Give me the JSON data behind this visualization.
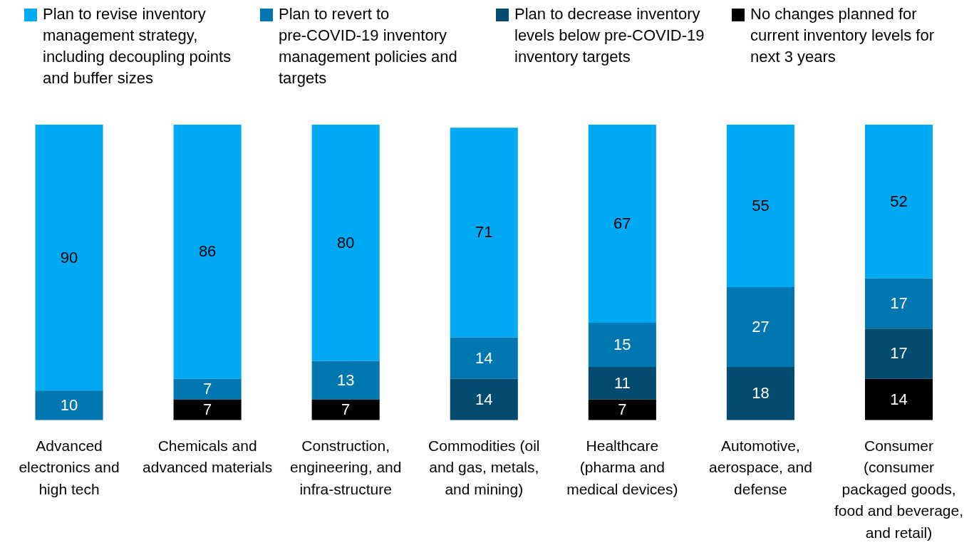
{
  "chart_data": {
    "type": "bar",
    "stacked": true,
    "legend": "top",
    "data_labels": true,
    "tick_labels": "x",
    "grid": false,
    "ylim": [
      0,
      100
    ],
    "categories": [
      "Advanced electronics and high tech",
      "Chemicals and advanced materials",
      "Construction, engineering, and infra-structure",
      "Commodities (oil and gas, metals, and mining)",
      "Healthcare (pharma and medical devices)",
      "Automotive, aerospace, and defense",
      "Consumer (consumer packaged goods, food and beverage, and retail)"
    ],
    "series": [
      {
        "name": "No changes planned for current inventory levels for next 3 years",
        "color": "#000000",
        "values": [
          null,
          7,
          7,
          null,
          7,
          null,
          14
        ]
      },
      {
        "name": "Plan to decrease inventory levels below pre-COVID-19 inventory targets",
        "color": "#034b6f",
        "values": [
          null,
          null,
          null,
          14,
          11,
          18,
          17
        ]
      },
      {
        "name": "Plan to revert to pre-COVID-19 inventory management policies and targets",
        "color": "#0077b0",
        "values": [
          10,
          7,
          13,
          14,
          15,
          27,
          17
        ]
      },
      {
        "name": "Plan to revise inventory management strategy, including decoupling points and buffer sizes",
        "color": "#00a9f4",
        "values": [
          90,
          86,
          80,
          71,
          67,
          55,
          52
        ]
      }
    ]
  }
}
